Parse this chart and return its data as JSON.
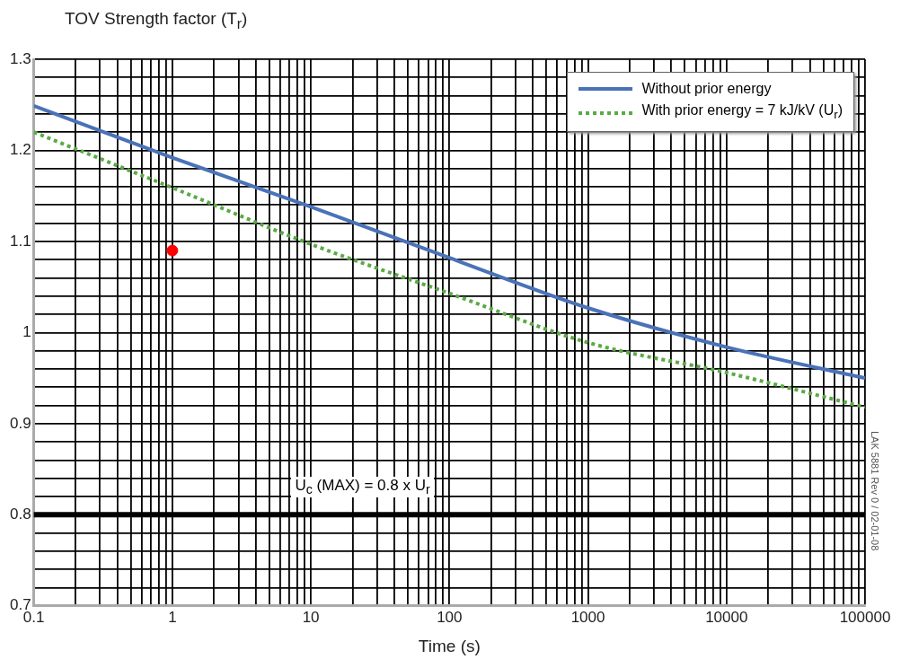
{
  "chart_data": {
    "type": "line",
    "xlabel": "Time (s)",
    "ylabel": "TOV Strength factor (T$_{r}$)",
    "log": "x",
    "grid": true,
    "legend": "top right",
    "xlim": [
      0.1,
      100000
    ],
    "ylim": [
      0.7,
      1.3
    ],
    "xticks": [
      0.1,
      {
        "value": 0.2,
        "label": null
      },
      {
        "value": 0.3,
        "label": null
      },
      {
        "value": 0.4,
        "label": null
      },
      {
        "value": 0.5,
        "label": null
      },
      {
        "value": 0.6,
        "label": null
      },
      {
        "value": 0.7,
        "label": null
      },
      {
        "value": 0.8,
        "label": null
      },
      {
        "value": 0.9,
        "label": null
      },
      1,
      {
        "value": 2,
        "label": null
      },
      {
        "value": 3,
        "label": null
      },
      {
        "value": 4,
        "label": null
      },
      {
        "value": 5,
        "label": null
      },
      {
        "value": 6,
        "label": null
      },
      {
        "value": 7,
        "label": null
      },
      {
        "value": 8,
        "label": null
      },
      {
        "value": 9,
        "label": null
      },
      10,
      {
        "value": 20,
        "label": null
      },
      {
        "value": 30,
        "label": null
      },
      {
        "value": 40,
        "label": null
      },
      {
        "value": 50,
        "label": null
      },
      {
        "value": 60,
        "label": null
      },
      {
        "value": 70,
        "label": null
      },
      {
        "value": 80,
        "label": null
      },
      {
        "value": 90,
        "label": null
      },
      100,
      {
        "value": 200,
        "label": null
      },
      {
        "value": 300,
        "label": null
      },
      {
        "value": 400,
        "label": null
      },
      {
        "value": 500,
        "label": null
      },
      {
        "value": 600,
        "label": null
      },
      {
        "value": 700,
        "label": null
      },
      {
        "value": 800,
        "label": null
      },
      {
        "value": 900,
        "label": null
      },
      1000,
      {
        "value": 2000,
        "label": null
      },
      {
        "value": 3000,
        "label": null
      },
      {
        "value": 4000,
        "label": null
      },
      {
        "value": 5000,
        "label": null
      },
      {
        "value": 6000,
        "label": null
      },
      {
        "value": 7000,
        "label": null
      },
      {
        "value": 8000,
        "label": null
      },
      {
        "value": 9000,
        "label": null
      },
      10000,
      {
        "value": 20000,
        "label": null
      },
      {
        "value": 30000,
        "label": null
      },
      {
        "value": 40000,
        "label": null
      },
      {
        "value": 50000,
        "label": null
      },
      {
        "value": 60000,
        "label": null
      },
      {
        "value": 70000,
        "label": null
      },
      {
        "value": 80000,
        "label": null
      },
      {
        "value": 90000,
        "label": null
      },
      100000
    ],
    "yticks": [
      0.7,
      {
        "value": 0.72,
        "label": null
      },
      {
        "value": 0.74,
        "label": null
      },
      {
        "value": 0.76,
        "label": null
      },
      {
        "value": 0.78,
        "label": null
      },
      0.8,
      {
        "value": 0.82,
        "label": null
      },
      {
        "value": 0.84,
        "label": null
      },
      {
        "value": 0.86,
        "label": null
      },
      {
        "value": 0.88,
        "label": null
      },
      0.9,
      {
        "value": 0.92,
        "label": null
      },
      {
        "value": 0.94,
        "label": null
      },
      {
        "value": 0.96,
        "label": null
      },
      {
        "value": 0.98,
        "label": null
      },
      {
        "value": 1,
        "label": "1"
      },
      {
        "value": 1.02,
        "label": null
      },
      {
        "value": 1.04,
        "label": null
      },
      {
        "value": 1.06,
        "label": null
      },
      {
        "value": 1.08,
        "label": null
      },
      1.1,
      {
        "value": 1.12,
        "label": null
      },
      {
        "value": 1.14,
        "label": null
      },
      {
        "value": 1.16,
        "label": null
      },
      {
        "value": 1.18,
        "label": null
      },
      1.2,
      {
        "value": 1.22,
        "label": null
      },
      {
        "value": 1.24,
        "label": null
      },
      {
        "value": 1.26,
        "label": null
      },
      {
        "value": 1.28,
        "label": null
      },
      1.3
    ],
    "series": [
      {
        "name": "Without prior energy",
        "color": "#4a72b8",
        "line_style": "solid",
        "x": [
          0.1,
          1,
          10,
          100,
          1000,
          10000,
          100000
        ],
        "values": [
          1.249,
          1.192,
          1.138,
          1.082,
          1.027,
          0.984,
          0.95
        ]
      },
      {
        "name": "With prior energy = 7 kJ/kV (U$_{r}$)",
        "color": "#5aaa46",
        "line_style": "dotted",
        "x": [
          0.1,
          1,
          10,
          100,
          1000,
          10000,
          100000
        ],
        "values": [
          1.22,
          1.159,
          1.097,
          1.043,
          0.989,
          0.956,
          0.918
        ]
      },
      {
        "type": "scatter",
        "color": "#ff0000",
        "marker": "circle",
        "x": [
          1
        ],
        "values": [
          1.09
        ]
      }
    ],
    "ref_lines": [
      {
        "axis": "y",
        "value": 0.8,
        "label": "U$_{c}$ (MAX) = 0.8 x U$_{r}$",
        "color": "#000000"
      }
    ],
    "annotations": [
      "LAK 5881 Rev 0 / 02-01-08"
    ]
  }
}
